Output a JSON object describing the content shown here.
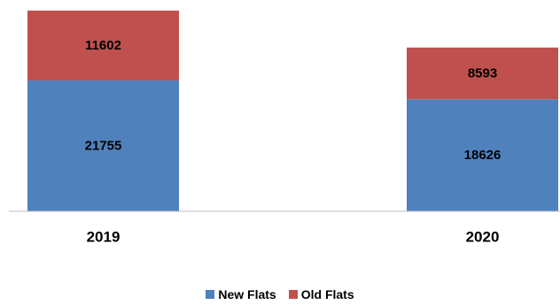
{
  "chart_data": {
    "type": "bar",
    "stacked": true,
    "categories": [
      "2019",
      "2020"
    ],
    "series": [
      {
        "name": "New Flats",
        "values": [
          21755,
          18626
        ],
        "color": "#4F81BD"
      },
      {
        "name": "Old Flats",
        "values": [
          11602,
          8593
        ],
        "color": "#C0504D"
      }
    ],
    "title": "",
    "xlabel": "",
    "ylabel": "",
    "ylim": [
      0,
      33357
    ],
    "grid": false,
    "legend_position": "bottom"
  }
}
